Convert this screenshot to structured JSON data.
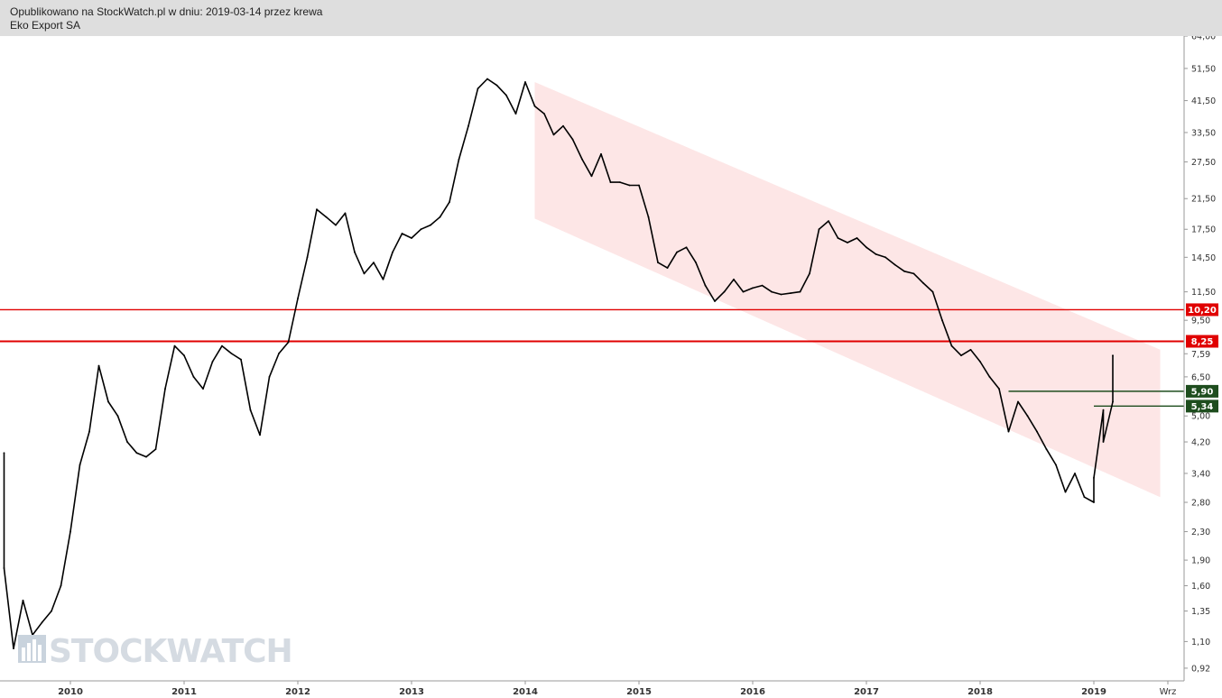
{
  "header": {
    "published_line": "Opublikowano na StockWatch.pl w dniu: 2019-03-14 przez krewa",
    "instrument": "Eko Export SA"
  },
  "watermark": {
    "text": "STOCKWATCH",
    "icon": "bar-chart-logo-icon"
  },
  "colors": {
    "price": "#000000",
    "channel_fill": "#fde6e6",
    "resistance": "#e00000",
    "support": "#1e4d1e",
    "axis": "#999999"
  },
  "chart_data": {
    "type": "line",
    "scale": "log",
    "title": "Eko Export SA",
    "x_ticks": [
      "2010",
      "2011",
      "2012",
      "2013",
      "2014",
      "2015",
      "2016",
      "2017",
      "2018",
      "2019",
      "Wrz"
    ],
    "y_ticks": [
      "64,00",
      "51,50",
      "41,50",
      "33,50",
      "27,50",
      "21,50",
      "17,50",
      "14,50",
      "11,50",
      "9,50",
      "7,59",
      "6,50",
      "5,00",
      "4,20",
      "3,40",
      "2,80",
      "2,30",
      "1,90",
      "1,60",
      "1,35",
      "1,10",
      "0,92"
    ],
    "ylim": [
      0.85,
      64
    ],
    "series": [
      {
        "points": [
          [
            "2009-06",
            3.9
          ],
          [
            "2009-06",
            1.8
          ],
          [
            "2009-07",
            1.05
          ],
          [
            "2009-08",
            1.45
          ],
          [
            "2009-09",
            1.15
          ],
          [
            "2009-10",
            1.25
          ],
          [
            "2009-11",
            1.35
          ],
          [
            "2009-12",
            1.6
          ],
          [
            "2010-01",
            2.3
          ],
          [
            "2010-02",
            3.6
          ],
          [
            "2010-03",
            4.5
          ],
          [
            "2010-04",
            7.0
          ],
          [
            "2010-05",
            5.5
          ],
          [
            "2010-06",
            5.0
          ],
          [
            "2010-07",
            4.2
          ],
          [
            "2010-08",
            3.9
          ],
          [
            "2010-09",
            3.8
          ],
          [
            "2010-10",
            4.0
          ],
          [
            "2010-11",
            6.0
          ],
          [
            "2010-12",
            8.0
          ],
          [
            "2011-01",
            7.5
          ],
          [
            "2011-02",
            6.5
          ],
          [
            "2011-03",
            6.0
          ],
          [
            "2011-04",
            7.2
          ],
          [
            "2011-05",
            8.0
          ],
          [
            "2011-06",
            7.6
          ],
          [
            "2011-07",
            7.3
          ],
          [
            "2011-08",
            5.2
          ],
          [
            "2011-09",
            4.4
          ],
          [
            "2011-10",
            6.5
          ],
          [
            "2011-11",
            7.6
          ],
          [
            "2011-12",
            8.2
          ],
          [
            "2012-01",
            11.0
          ],
          [
            "2012-02",
            14.5
          ],
          [
            "2012-03",
            20.0
          ],
          [
            "2012-04",
            19.0
          ],
          [
            "2012-05",
            18.0
          ],
          [
            "2012-06",
            19.5
          ],
          [
            "2012-07",
            15.0
          ],
          [
            "2012-08",
            13.0
          ],
          [
            "2012-09",
            14.0
          ],
          [
            "2012-10",
            12.5
          ],
          [
            "2012-11",
            15.0
          ],
          [
            "2012-12",
            17.0
          ],
          [
            "2013-01",
            16.5
          ],
          [
            "2013-02",
            17.5
          ],
          [
            "2013-03",
            18.0
          ],
          [
            "2013-04",
            19.0
          ],
          [
            "2013-05",
            21.0
          ],
          [
            "2013-06",
            28.0
          ],
          [
            "2013-07",
            35.0
          ],
          [
            "2013-08",
            45.0
          ],
          [
            "2013-09",
            48.0
          ],
          [
            "2013-10",
            46.0
          ],
          [
            "2013-11",
            43.0
          ],
          [
            "2013-12",
            38.0
          ],
          [
            "2014-01",
            47.0
          ],
          [
            "2014-02",
            40.0
          ],
          [
            "2014-03",
            38.0
          ],
          [
            "2014-04",
            33.0
          ],
          [
            "2014-05",
            35.0
          ],
          [
            "2014-06",
            32.0
          ],
          [
            "2014-07",
            28.0
          ],
          [
            "2014-08",
            25.0
          ],
          [
            "2014-09",
            29.0
          ],
          [
            "2014-10",
            24.0
          ],
          [
            "2014-11",
            24.0
          ],
          [
            "2014-12",
            23.5
          ],
          [
            "2015-01",
            23.5
          ],
          [
            "2015-02",
            19.0
          ],
          [
            "2015-03",
            14.0
          ],
          [
            "2015-04",
            13.5
          ],
          [
            "2015-05",
            15.0
          ],
          [
            "2015-06",
            15.5
          ],
          [
            "2015-07",
            14.0
          ],
          [
            "2015-08",
            12.0
          ],
          [
            "2015-09",
            10.8
          ],
          [
            "2015-10",
            11.5
          ],
          [
            "2015-11",
            12.5
          ],
          [
            "2015-12",
            11.5
          ],
          [
            "2016-01",
            11.8
          ],
          [
            "2016-02",
            12.0
          ],
          [
            "2016-03",
            11.5
          ],
          [
            "2016-04",
            11.3
          ],
          [
            "2016-05",
            11.4
          ],
          [
            "2016-06",
            11.5
          ],
          [
            "2016-07",
            13.0
          ],
          [
            "2016-08",
            17.5
          ],
          [
            "2016-09",
            18.5
          ],
          [
            "2016-10",
            16.5
          ],
          [
            "2016-11",
            16.0
          ],
          [
            "2016-12",
            16.5
          ],
          [
            "2017-01",
            15.5
          ],
          [
            "2017-02",
            14.8
          ],
          [
            "2017-03",
            14.5
          ],
          [
            "2017-04",
            13.8
          ],
          [
            "2017-05",
            13.2
          ],
          [
            "2017-06",
            13.0
          ],
          [
            "2017-07",
            12.2
          ],
          [
            "2017-08",
            11.5
          ],
          [
            "2017-09",
            9.5
          ],
          [
            "2017-10",
            8.0
          ],
          [
            "2017-11",
            7.5
          ],
          [
            "2017-12",
            7.8
          ],
          [
            "2018-01",
            7.2
          ],
          [
            "2018-02",
            6.5
          ],
          [
            "2018-03",
            6.0
          ],
          [
            "2018-04",
            4.5
          ],
          [
            "2018-05",
            5.5
          ],
          [
            "2018-06",
            5.0
          ],
          [
            "2018-07",
            4.5
          ],
          [
            "2018-08",
            4.0
          ],
          [
            "2018-09",
            3.6
          ],
          [
            "2018-10",
            3.0
          ],
          [
            "2018-11",
            3.4
          ],
          [
            "2018-12",
            2.9
          ],
          [
            "2019-01",
            2.8
          ],
          [
            "2019-01",
            3.3
          ],
          [
            "2019-02",
            5.2
          ],
          [
            "2019-02",
            4.2
          ],
          [
            "2019-03",
            5.5
          ],
          [
            "2019-03",
            7.5
          ]
        ]
      }
    ],
    "channel": {
      "upper": [
        [
          "2014-02",
          47.0
        ],
        [
          "2019-08",
          7.8
        ]
      ],
      "lower": [
        [
          "2014-02",
          18.8
        ],
        [
          "2019-08",
          2.9
        ]
      ]
    },
    "levels": [
      {
        "value": 10.2,
        "label": "10,20",
        "kind": "resistance",
        "from": "start"
      },
      {
        "value": 8.25,
        "label": "8,25",
        "kind": "resistance",
        "from": "start"
      },
      {
        "value": 5.9,
        "label": "5,90",
        "kind": "support",
        "from": "2018-04"
      },
      {
        "value": 5.34,
        "label": "5,34",
        "kind": "support",
        "from": "2019-01"
      }
    ]
  }
}
